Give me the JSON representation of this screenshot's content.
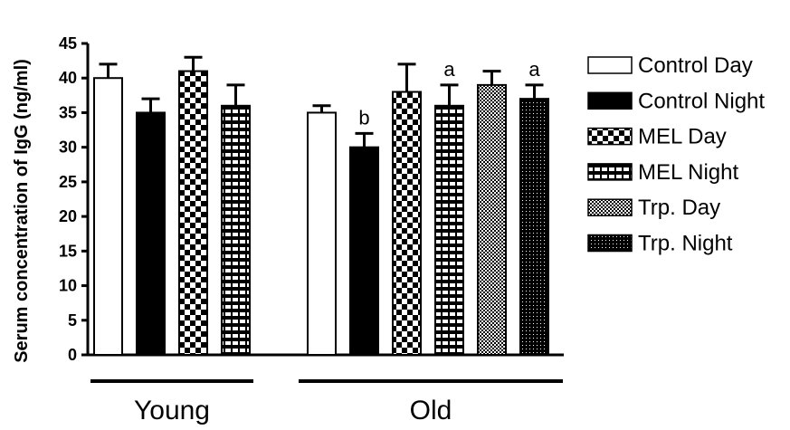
{
  "chart_data": {
    "type": "bar",
    "title": "",
    "ylabel": "Serum concentration of IgG (ng/ml)",
    "xlabel": "",
    "ylim": [
      0,
      45
    ],
    "yticks": [
      0,
      5,
      10,
      15,
      20,
      25,
      30,
      35,
      40,
      45
    ],
    "legend_position": "right",
    "groups": [
      {
        "label": "Young",
        "bars": [
          {
            "series": "Control Day",
            "value": 40,
            "error": 2,
            "annotation": ""
          },
          {
            "series": "Control Night",
            "value": 35,
            "error": 2,
            "annotation": ""
          },
          {
            "series": "MEL Day",
            "value": 41,
            "error": 2,
            "annotation": ""
          },
          {
            "series": "MEL Night",
            "value": 36,
            "error": 3,
            "annotation": ""
          }
        ]
      },
      {
        "label": "Old",
        "bars": [
          {
            "series": "Control Day",
            "value": 35,
            "error": 1,
            "annotation": ""
          },
          {
            "series": "Control Night",
            "value": 30,
            "error": 2,
            "annotation": "b"
          },
          {
            "series": "MEL Day",
            "value": 38,
            "error": 4,
            "annotation": ""
          },
          {
            "series": "MEL Night",
            "value": 36,
            "error": 3,
            "annotation": "a"
          },
          {
            "series": "Trp. Day",
            "value": 39,
            "error": 2,
            "annotation": ""
          },
          {
            "series": "Trp. Night",
            "value": 37,
            "error": 2,
            "annotation": "a"
          }
        ]
      }
    ],
    "series": [
      {
        "name": "Control Day",
        "pattern": "white"
      },
      {
        "name": "Control Night",
        "pattern": "black"
      },
      {
        "name": "MEL Day",
        "pattern": "checker"
      },
      {
        "name": "MEL Night",
        "pattern": "grid"
      },
      {
        "name": "Trp. Day",
        "pattern": "fine-checker"
      },
      {
        "name": "Trp. Night",
        "pattern": "dotted-black"
      }
    ]
  }
}
